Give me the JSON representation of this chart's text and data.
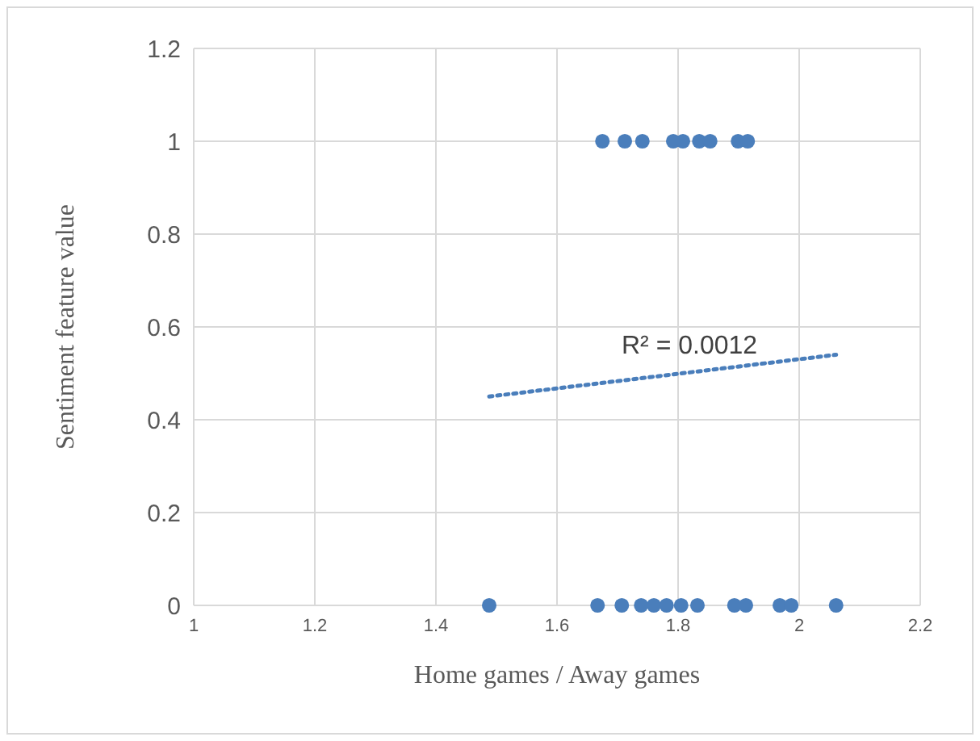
{
  "chart_data": {
    "type": "scatter",
    "xlabel": "Home games / Away games",
    "ylabel": "Sentiment feature value",
    "xlim": [
      1,
      2.2
    ],
    "xticks": [
      1,
      1.2,
      1.4,
      1.6,
      1.8,
      2,
      2.2
    ],
    "ylim": [
      0,
      1.2
    ],
    "yticks": [
      0,
      0.2,
      0.4,
      0.6,
      0.8,
      1,
      1.2
    ],
    "grid": true,
    "series": [
      {
        "marker": "circle",
        "color": "#4a7ebb",
        "x": [
          1.675,
          1.712,
          1.741,
          1.792,
          1.808,
          1.835,
          1.853,
          1.899,
          1.915,
          1.488,
          1.667,
          1.707,
          1.739,
          1.76,
          1.781,
          1.805,
          1.832,
          1.893,
          1.912,
          1.968,
          1.987,
          2.061
        ],
        "values": [
          1,
          1,
          1,
          1,
          1,
          1,
          1,
          1,
          1,
          0,
          0,
          0,
          0,
          0,
          0,
          0,
          0,
          0,
          0,
          0,
          0,
          0
        ]
      },
      {
        "type": "line",
        "color": "#4a7ebb",
        "line_style": "dotted",
        "x": [
          1.488,
          2.061
        ],
        "values": [
          0.45,
          0.54
        ]
      }
    ],
    "annotations": [
      "R² = 0.0012"
    ]
  }
}
